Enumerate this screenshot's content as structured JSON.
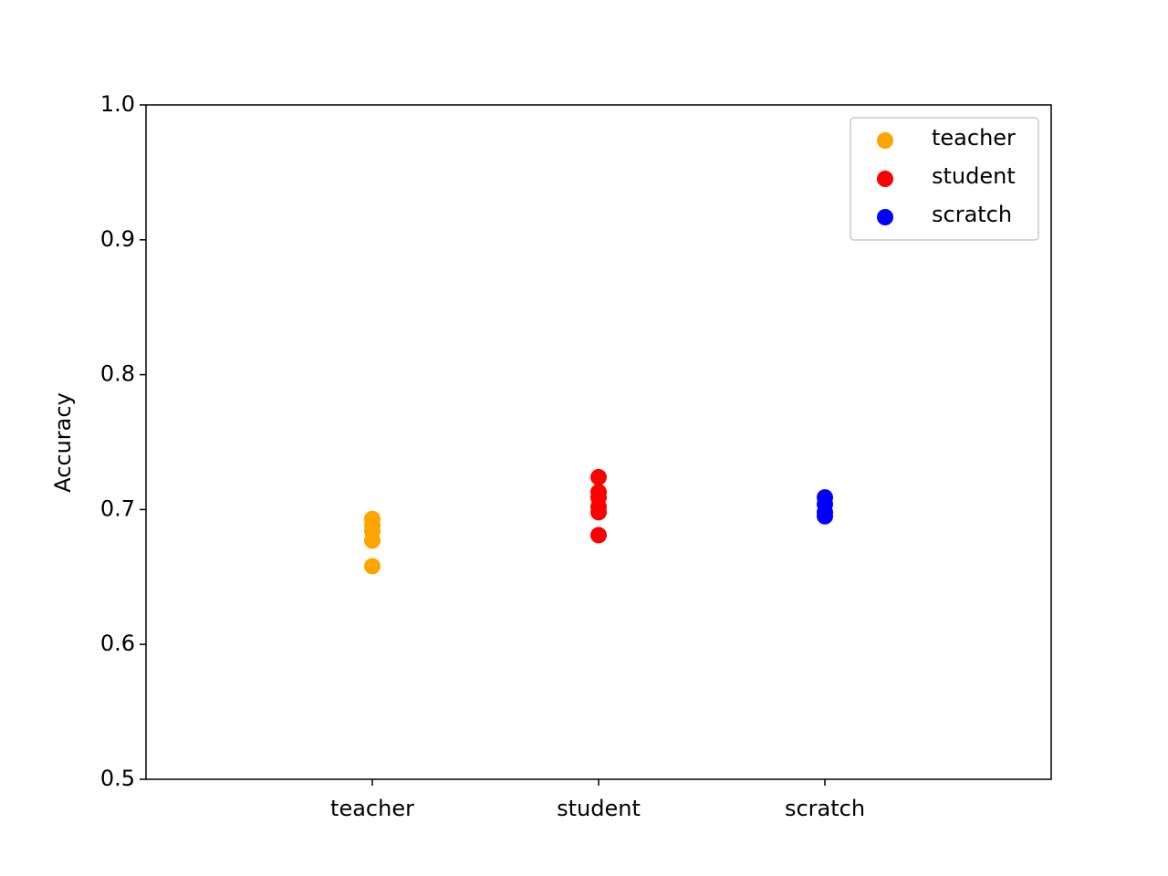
{
  "chart_data": {
    "type": "scatter",
    "y_label": "Accuracy",
    "xlim": [
      -1,
      3
    ],
    "xticks": [
      {
        "value": 0,
        "label": "teacher"
      },
      {
        "value": 1,
        "label": "student"
      },
      {
        "value": 2,
        "label": "scratch"
      }
    ],
    "ylim": [
      0.5,
      1
    ],
    "yticks": [
      0.5,
      0.6,
      0.7,
      0.8,
      0.9,
      {
        "value": 1,
        "label": "1.0"
      }
    ],
    "legend": "upper right",
    "series": [
      {
        "name": "teacher",
        "color": "orange",
        "x": [
          0,
          0,
          0,
          0,
          0
        ],
        "values": [
          0.693,
          0.688,
          0.684,
          0.677,
          0.658
        ]
      },
      {
        "name": "student",
        "color": "red",
        "x": [
          1,
          1,
          1,
          1,
          1,
          1
        ],
        "values": [
          0.724,
          0.713,
          0.709,
          0.702,
          0.698,
          0.681
        ]
      },
      {
        "name": "scratch",
        "color": "blue",
        "x": [
          2,
          2,
          2,
          2
        ],
        "values": [
          0.709,
          0.704,
          0.698,
          0.695
        ]
      }
    ]
  }
}
